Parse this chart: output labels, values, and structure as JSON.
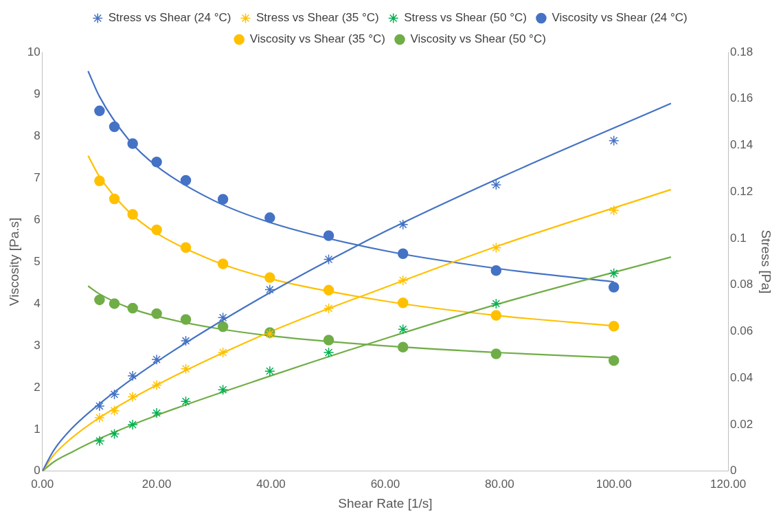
{
  "chart_data": {
    "type": "scatter",
    "xlabel": "Shear Rate [1/s]",
    "ylabel": "Viscosity [Pa.s]",
    "y2label": "Stress [Pa]",
    "legend": "top",
    "x": [
      10,
      12.6,
      15.8,
      20,
      25.1,
      31.6,
      39.8,
      50.1,
      63.1,
      79.4,
      100
    ],
    "xlim": [
      0,
      120
    ],
    "xticks": [
      {
        "value": 0,
        "label": "0.00"
      },
      {
        "value": 20,
        "label": "20.00"
      },
      {
        "value": 40,
        "label": "40.00"
      },
      {
        "value": 60,
        "label": "60.00"
      },
      {
        "value": 80,
        "label": "80.00"
      },
      {
        "value": 100,
        "label": "100.00"
      },
      {
        "value": 120,
        "label": "120.00"
      }
    ],
    "ylim": [
      0,
      10
    ],
    "yticks": [
      0,
      1,
      2,
      3,
      4,
      5,
      6,
      7,
      8,
      9,
      10
    ],
    "y2lim": [
      0,
      0.18
    ],
    "y2ticks": [
      0,
      0.02,
      0.04,
      0.06,
      0.08,
      0.1,
      0.12,
      0.14,
      0.16,
      0.18
    ],
    "series": [
      {
        "name": "Stress vs Shear (24 °C)",
        "marker": "cross",
        "axis": "y2",
        "color": "#4472c4",
        "values": [
          0.028,
          0.033,
          0.041,
          0.048,
          0.056,
          0.066,
          0.078,
          0.091,
          0.106,
          0.123,
          0.142
        ]
      },
      {
        "name": "Stress vs Shear (35 °C)",
        "marker": "cross",
        "axis": "y2",
        "color": "#ffc000",
        "values": [
          0.023,
          0.026,
          0.032,
          0.037,
          0.044,
          0.051,
          0.059,
          0.07,
          0.082,
          0.096,
          0.112
        ]
      },
      {
        "name": "Stress vs Shear (50 °C)",
        "marker": "cross",
        "axis": "y2",
        "color": "#00b050",
        "values": [
          0.013,
          0.016,
          0.02,
          0.025,
          0.03,
          0.035,
          0.043,
          0.051,
          0.061,
          0.072,
          0.085
        ]
      },
      {
        "name": "Viscosity vs Shear (24 °C)",
        "marker": "circle",
        "color": "#4472c4",
        "values": [
          8.6,
          8.22,
          7.82,
          7.38,
          6.94,
          6.49,
          6.05,
          5.62,
          5.19,
          4.79,
          4.39
        ]
      },
      {
        "name": "Viscosity vs Shear (35 °C)",
        "marker": "circle",
        "color": "#ffc000",
        "values": [
          6.93,
          6.5,
          6.13,
          5.76,
          5.34,
          4.95,
          4.62,
          4.32,
          4.02,
          3.72,
          3.46
        ]
      },
      {
        "name": "Viscosity vs Shear (50 °C)",
        "marker": "circle",
        "color": "#70ad47",
        "values": [
          4.09,
          4.0,
          3.89,
          3.76,
          3.62,
          3.45,
          3.31,
          3.13,
          2.96,
          2.8,
          2.64
        ]
      },
      {
        "type": "line",
        "axis": "y2",
        "color": "#4472c4",
        "x": [
          0,
          2,
          5,
          10,
          20,
          40,
          60,
          80,
          110
        ],
        "values": [
          0,
          0.009,
          0.018,
          0.029,
          0.047,
          0.077,
          0.103,
          0.126,
          0.158
        ]
      },
      {
        "type": "line",
        "axis": "y2",
        "color": "#ffc000",
        "x": [
          0,
          2,
          5,
          10,
          20,
          40,
          60,
          80,
          110
        ],
        "values": [
          0,
          0.007,
          0.014,
          0.023,
          0.037,
          0.06,
          0.079,
          0.097,
          0.121
        ]
      },
      {
        "type": "line",
        "axis": "y2",
        "color": "#70ad47",
        "x": [
          0,
          2,
          5,
          10,
          20,
          40,
          60,
          80,
          110
        ],
        "values": [
          0,
          0.004,
          0.008,
          0.014,
          0.024,
          0.041,
          0.057,
          0.072,
          0.092
        ]
      },
      {
        "type": "line",
        "color": "#4472c4",
        "x": [
          8,
          10,
          15,
          20,
          30,
          40,
          60,
          80,
          100
        ],
        "values": [
          9.55,
          8.94,
          7.93,
          7.28,
          6.46,
          5.93,
          5.26,
          4.83,
          4.52
        ]
      },
      {
        "type": "line",
        "color": "#ffc000",
        "x": [
          8,
          10,
          15,
          20,
          30,
          40,
          60,
          80,
          100
        ],
        "values": [
          7.53,
          7.03,
          6.21,
          5.68,
          5.02,
          4.59,
          4.06,
          3.71,
          3.47
        ]
      },
      {
        "type": "line",
        "color": "#70ad47",
        "x": [
          8,
          10,
          15,
          20,
          30,
          40,
          60,
          80,
          100
        ],
        "values": [
          4.42,
          4.23,
          3.91,
          3.7,
          3.42,
          3.23,
          2.99,
          2.83,
          2.71
        ]
      }
    ]
  }
}
